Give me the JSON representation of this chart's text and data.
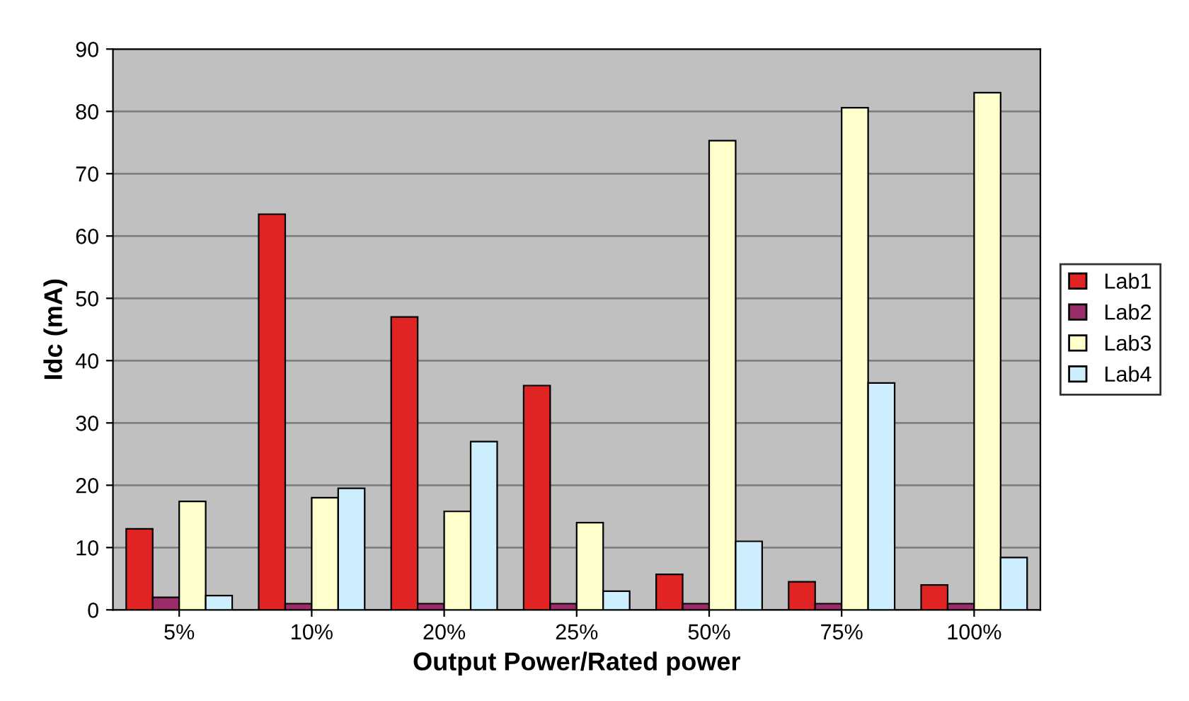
{
  "chart_data": {
    "type": "bar",
    "xlabel": "Output Power/Rated power",
    "ylabel": "Idc (mA)",
    "categories": [
      "5%",
      "10%",
      "20%",
      "25%",
      "50%",
      "75%",
      "100%"
    ],
    "series": [
      {
        "name": "Lab1",
        "color": "#e02424",
        "values": [
          13,
          63.5,
          47,
          36,
          5.7,
          4.5,
          4
        ]
      },
      {
        "name": "Lab2",
        "color": "#9b2c6a",
        "values": [
          2,
          1,
          1,
          1,
          1,
          1,
          1
        ]
      },
      {
        "name": "Lab3",
        "color": "#ffffcc",
        "values": [
          17.4,
          18,
          15.8,
          14,
          75.3,
          80.6,
          83
        ]
      },
      {
        "name": "Lab4",
        "color": "#cceeff",
        "values": [
          2.3,
          19.5,
          27,
          3,
          11,
          36.4,
          8.4
        ]
      }
    ],
    "ylim": [
      0,
      90
    ],
    "yticks": [
      0,
      10,
      20,
      30,
      40,
      50,
      60,
      70,
      80,
      90
    ],
    "grid": "y",
    "legend": "right"
  }
}
